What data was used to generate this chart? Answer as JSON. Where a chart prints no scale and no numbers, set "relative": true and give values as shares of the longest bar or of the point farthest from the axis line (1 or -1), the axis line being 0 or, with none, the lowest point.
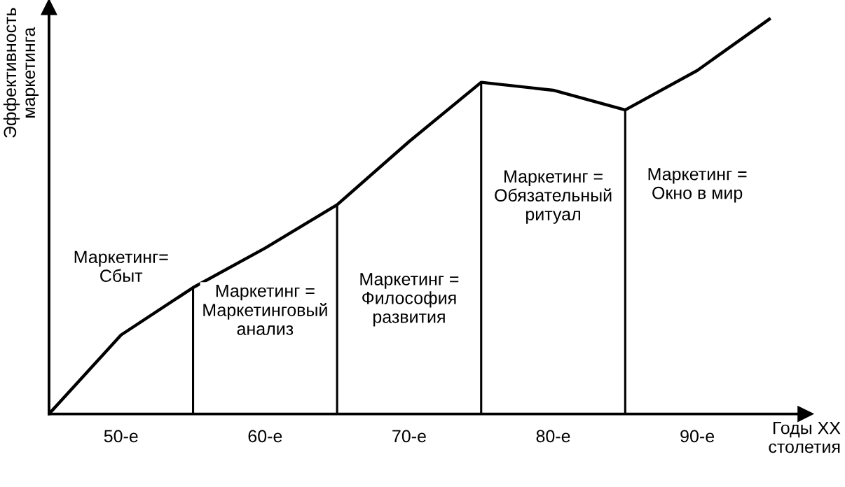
{
  "chart_data": {
    "type": "line",
    "relative": true,
    "ylabel": "Эффективность\nмаркетинга",
    "xlabel": "Годы XX\nстолетия",
    "categories": [
      null,
      "50-е",
      null,
      "60-е",
      null,
      "70-е",
      null,
      "80-е",
      null,
      "90-е",
      null
    ],
    "series": [
      {
        "color": "#000000",
        "values": [
          0,
          0.2,
          0.32,
          0.42,
          0.53,
          0.69,
          0.84,
          0.82,
          0.77,
          0.87,
          1.0
        ]
      },
      {
        "type": "bar",
        "color": "#000000",
        "values": [
          null,
          null,
          0.32,
          null,
          0.53,
          null,
          0.84,
          null,
          0.77,
          null,
          null
        ]
      }
    ],
    "annotations": [
      "Маркетинг=\nСбыт",
      "Маркетинг =\nМаркетинговый\nанализ",
      "Маркетинг =\nФилософия\nразвития",
      "Маркетинг =\nОбязательный\nритуал",
      "Маркетинг =\nОкно в мир"
    ],
    "grid": false,
    "legend": false,
    "marker": "none",
    "line_style": "solid"
  }
}
